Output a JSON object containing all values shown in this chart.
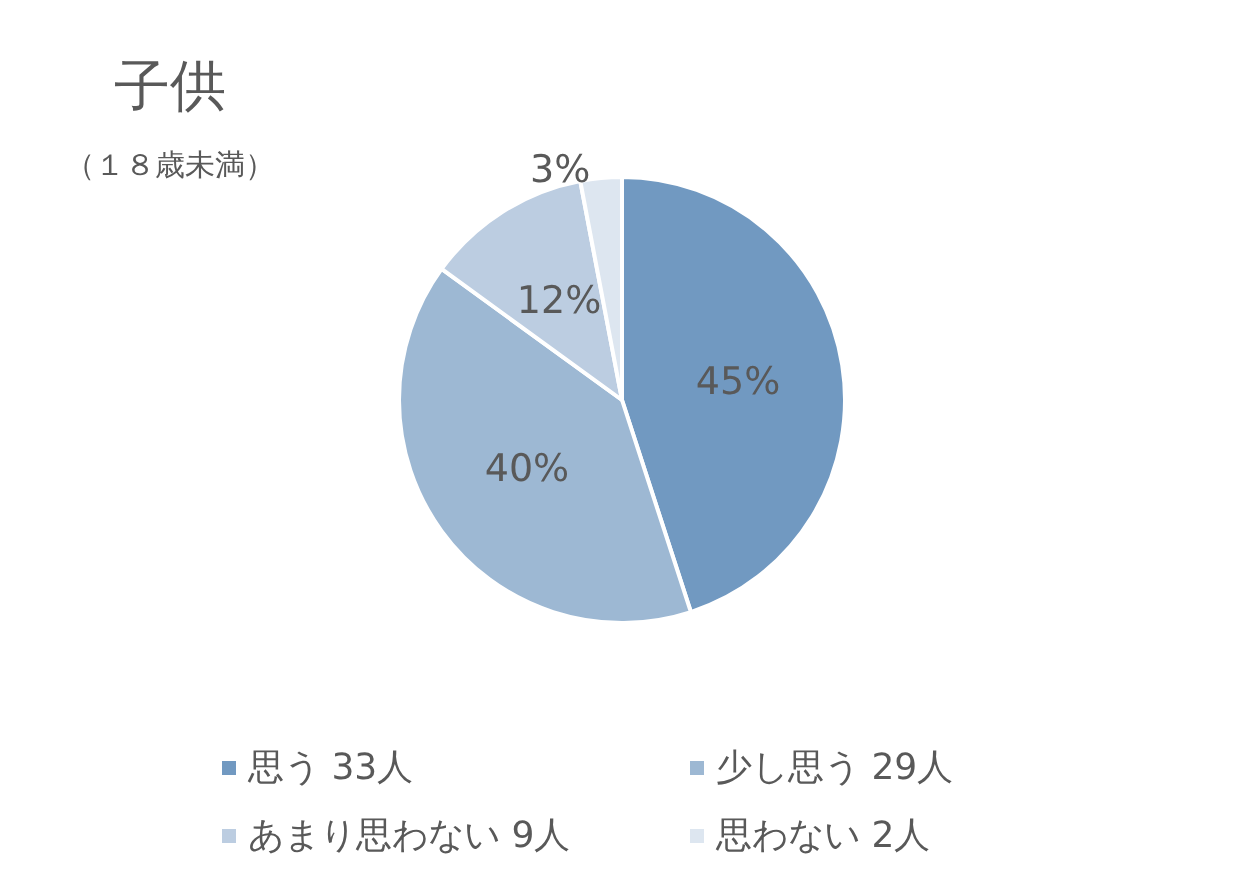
{
  "chart_data": {
    "type": "pie",
    "title": "子供",
    "subtitle": "（１８歳未満）",
    "categories": [
      "思う 33人",
      "少し思う 29人",
      "あまり思わない 9人",
      "思わない 2人"
    ],
    "values": [
      45,
      40,
      12,
      3
    ],
    "value_labels": [
      "45%",
      "40%",
      "12%",
      "3%"
    ],
    "colors": [
      "#7199c1",
      "#9db8d3",
      "#bccde1",
      "#dde6f0"
    ],
    "legend": "bottom"
  }
}
